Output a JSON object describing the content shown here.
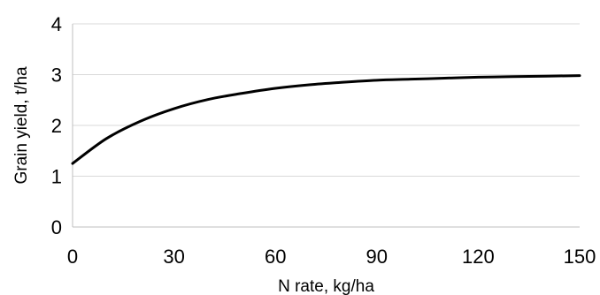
{
  "chart_data": {
    "type": "line",
    "title": "",
    "xlabel": "N rate, kg/ha",
    "ylabel": "Grain yield, t/ha",
    "xlim": [
      0,
      150
    ],
    "ylim": [
      0,
      4
    ],
    "x_ticks": [
      0,
      30,
      60,
      90,
      120,
      150
    ],
    "y_ticks": [
      0,
      1,
      2,
      3,
      4
    ],
    "grid": "horizontal",
    "legend": "none",
    "series": [
      {
        "x": [
          0,
          10,
          20,
          30,
          40,
          50,
          60,
          70,
          80,
          90,
          100,
          110,
          120,
          130,
          140,
          150
        ],
        "y": [
          1.25,
          1.74,
          2.08,
          2.33,
          2.51,
          2.63,
          2.73,
          2.8,
          2.85,
          2.89,
          2.91,
          2.93,
          2.95,
          2.96,
          2.97,
          2.98
        ],
        "color": "#000000"
      }
    ]
  }
}
